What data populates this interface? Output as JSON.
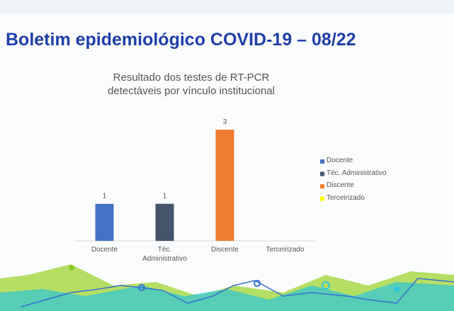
{
  "header": {
    "title": "Boletim epidemiológico COVID-19 – 08/22"
  },
  "chart_data": {
    "type": "bar",
    "title": "Resultado dos testes de RT-PCR detectáveis por vínculo institucional",
    "categories": [
      "Docente",
      "Téc. Administrativo",
      "Discente",
      "Terceirizado"
    ],
    "values": [
      1,
      1,
      3,
      0
    ],
    "colors": [
      "#4472c4",
      "#44546a",
      "#ed7d31",
      "#ffff00"
    ],
    "ylim": [
      0,
      3
    ],
    "legend": "right"
  }
}
